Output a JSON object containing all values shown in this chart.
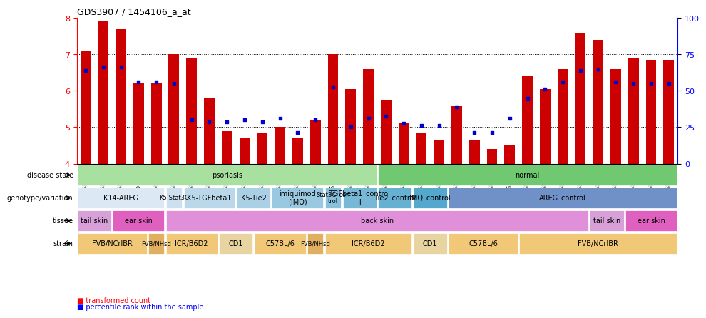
{
  "title": "GDS3907 / 1454106_a_at",
  "samples": [
    "GSM684694",
    "GSM684695",
    "GSM684696",
    "GSM684688",
    "GSM684689",
    "GSM684690",
    "GSM684700",
    "GSM684701",
    "GSM684704",
    "GSM684705",
    "GSM684706",
    "GSM684676",
    "GSM684677",
    "GSM684678",
    "GSM684682",
    "GSM684683",
    "GSM684684",
    "GSM684702",
    "GSM684703",
    "GSM684707",
    "GSM684708",
    "GSM684709",
    "GSM684679",
    "GSM684680",
    "GSM684681",
    "GSM684685",
    "GSM684686",
    "GSM684687",
    "GSM684697",
    "GSM684698",
    "GSM684699",
    "GSM684691",
    "GSM684692",
    "GSM684693"
  ],
  "bar_values": [
    7.1,
    7.9,
    7.7,
    6.2,
    6.2,
    7.0,
    6.9,
    5.8,
    4.9,
    4.7,
    4.85,
    5.0,
    4.7,
    5.2,
    7.0,
    6.05,
    6.6,
    5.75,
    5.1,
    4.85,
    4.65,
    5.6,
    4.65,
    4.4,
    4.5,
    6.4,
    6.05,
    6.6,
    7.6,
    7.4,
    6.6,
    6.9,
    6.85,
    6.85
  ],
  "percentile_values": [
    6.55,
    6.65,
    6.65,
    6.25,
    6.25,
    6.2,
    5.2,
    5.15,
    5.15,
    5.2,
    5.15,
    5.25,
    4.85,
    5.2,
    6.1,
    5.0,
    5.25,
    5.3,
    5.1,
    5.05,
    5.05,
    5.55,
    4.85,
    4.85,
    5.25,
    5.8,
    6.05,
    6.25,
    6.55,
    6.6,
    6.25,
    6.2,
    6.2,
    6.2
  ],
  "ylim": [
    4.0,
    8.0
  ],
  "yticks": [
    4,
    5,
    6,
    7,
    8
  ],
  "right_yticks": [
    0,
    25,
    50,
    75,
    100
  ],
  "bar_color": "#cc0000",
  "dot_color": "#0000cc",
  "disease_state": {
    "psoriasis": {
      "start": 0,
      "end": 16,
      "color": "#90ee90"
    },
    "normal": {
      "start": 16,
      "end": 34,
      "color": "#66cc66"
    }
  },
  "genotype_groups": [
    {
      "label": "K14-AREG",
      "start": 0,
      "end": 5,
      "color": "#e0e0ff"
    },
    {
      "label": "K5-Stat3C",
      "start": 5,
      "end": 6,
      "color": "#d0d0f0"
    },
    {
      "label": "K5-TGFbeta1",
      "start": 6,
      "end": 9,
      "color": "#c8d8f0"
    },
    {
      "label": "K5-Tie2",
      "start": 9,
      "end": 11,
      "color": "#b8d0f0"
    },
    {
      "label": "imiquimod\n(IMQ)",
      "start": 11,
      "end": 14,
      "color": "#a8c8f0"
    },
    {
      "label": "Stat3C_con\ntrol",
      "start": 14,
      "end": 15,
      "color": "#98c0f0"
    },
    {
      "label": "TGFbeta1_control\nl",
      "start": 15,
      "end": 17,
      "color": "#88b8f0"
    },
    {
      "label": "Tie2_control",
      "start": 17,
      "end": 19,
      "color": "#78b0f0"
    },
    {
      "label": "IMQ_control",
      "start": 19,
      "end": 21,
      "color": "#68a8f0"
    },
    {
      "label": "AREG_control",
      "start": 21,
      "end": 34,
      "color": "#8080e0"
    }
  ],
  "tissue_groups": [
    {
      "label": "tail skin",
      "start": 0,
      "end": 2,
      "color": "#e0b0e0"
    },
    {
      "label": "ear skin",
      "start": 2,
      "end": 5,
      "color": "#e060c0"
    },
    {
      "label": "back skin",
      "start": 5,
      "end": 29,
      "color": "#e080e0"
    },
    {
      "label": "tail skin",
      "start": 29,
      "end": 31,
      "color": "#e0b0e0"
    },
    {
      "label": "ear skin",
      "start": 31,
      "end": 34,
      "color": "#e060c0"
    }
  ],
  "strain_groups": [
    {
      "label": "FVB/NCrIBR",
      "start": 0,
      "end": 4,
      "color": "#f0c080"
    },
    {
      "label": "FVB/NHsd",
      "start": 4,
      "end": 5,
      "color": "#e0b060"
    },
    {
      "label": "ICR/B6D2",
      "start": 5,
      "end": 8,
      "color": "#f0c080"
    },
    {
      "label": "CD1",
      "start": 8,
      "end": 10,
      "color": "#e8d0a0"
    },
    {
      "label": "C57BL/6",
      "start": 10,
      "end": 13,
      "color": "#f0c080"
    },
    {
      "label": "FVB/NHsd",
      "start": 13,
      "end": 14,
      "color": "#e0b060"
    },
    {
      "label": "ICR/B6D2",
      "start": 14,
      "end": 19,
      "color": "#f0c080"
    },
    {
      "label": "CD1",
      "start": 19,
      "end": 21,
      "color": "#e8d0a0"
    },
    {
      "label": "C57BL/6",
      "start": 21,
      "end": 25,
      "color": "#f0c080"
    },
    {
      "label": "FVB/NCrIBR",
      "start": 25,
      "end": 34,
      "color": "#f0c080"
    }
  ],
  "row_labels": [
    "disease state",
    "genotype/variation",
    "tissue",
    "strain"
  ],
  "background_color": "#ffffff"
}
